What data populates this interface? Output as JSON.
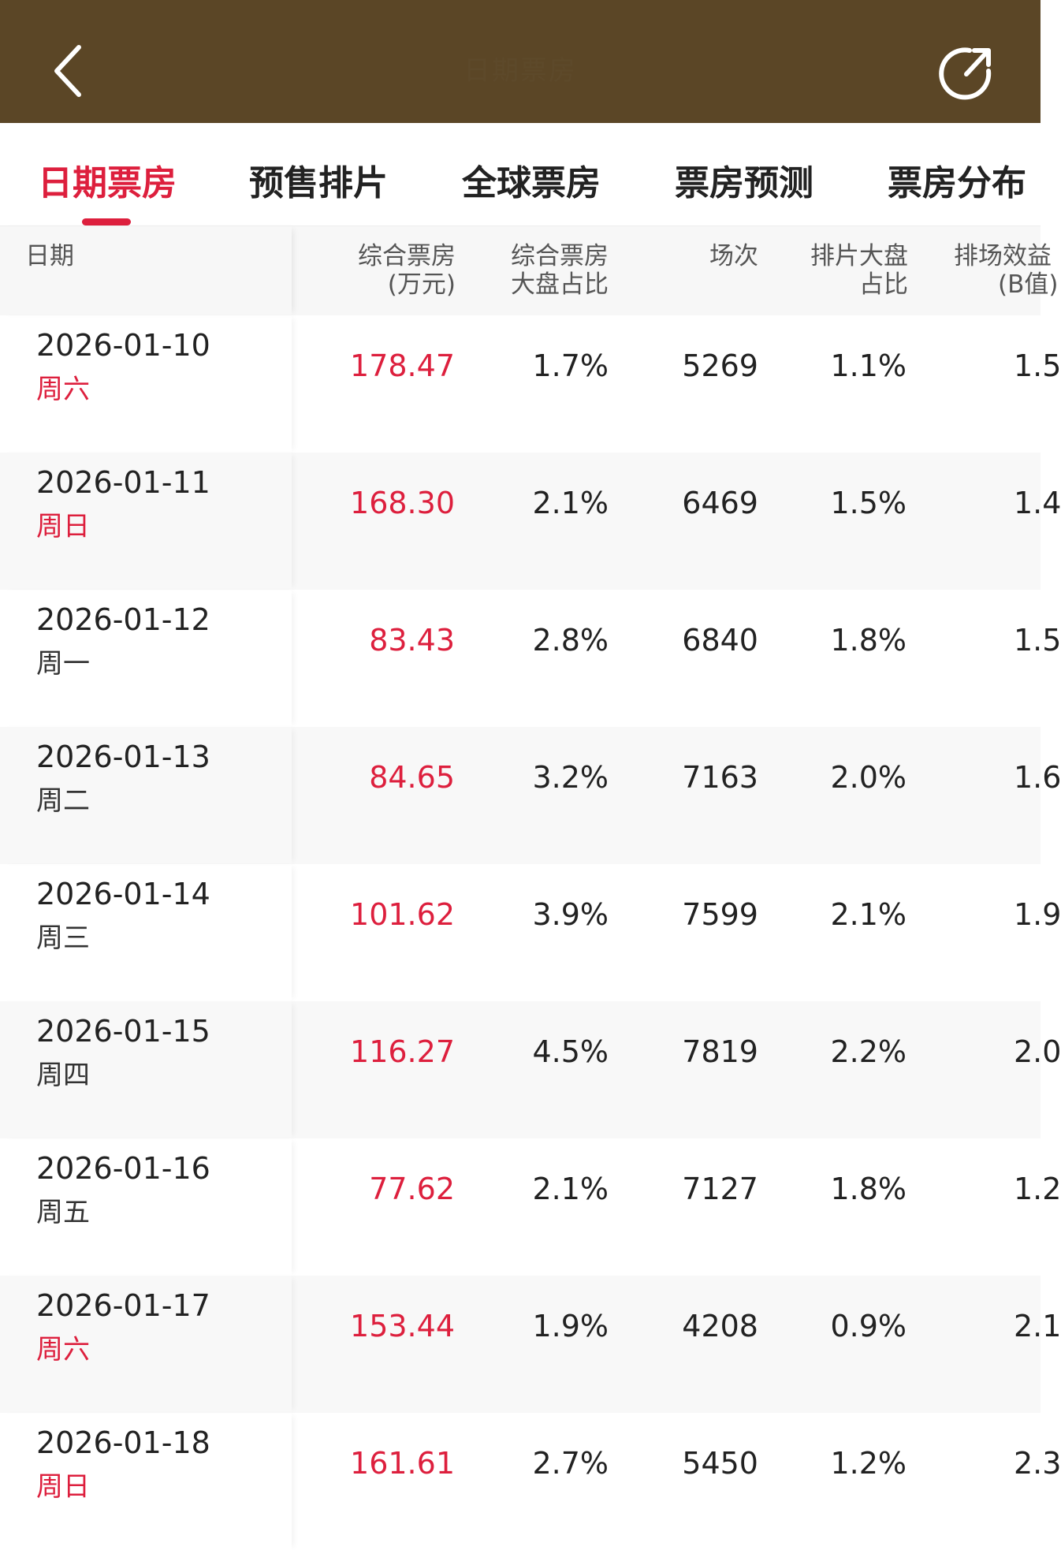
{
  "header": {
    "title": "日期票房",
    "back_icon": "chevron-left-icon",
    "share_icon": "share-icon",
    "bg_color": "#5b4626"
  },
  "tabs": [
    {
      "label": "日期票房",
      "active": true
    },
    {
      "label": "预售排片",
      "active": false
    },
    {
      "label": "全球票房",
      "active": false
    },
    {
      "label": "票房预测",
      "active": false
    },
    {
      "label": "票房分布",
      "active": false
    }
  ],
  "accent_color": "#dd1f3d",
  "table": {
    "columns": {
      "date": "日期",
      "box_office_1": "综合票房",
      "box_office_2": "(万元)",
      "bo_share_1": "综合票房",
      "bo_share_2": "大盘占比",
      "shows": "场次",
      "show_share_1": "排片大盘",
      "show_share_2": "占比",
      "efficiency_1": "排场效益",
      "efficiency_2": "(B值)"
    },
    "rows": [
      {
        "date": "2026-01-10",
        "weekday": "周六",
        "box_office": "178.47",
        "bo_share": "1.7%",
        "shows": "5269",
        "show_share": "1.1%",
        "efficiency": "1.5"
      },
      {
        "date": "2026-01-11",
        "weekday": "周日",
        "box_office": "168.30",
        "bo_share": "2.1%",
        "shows": "6469",
        "show_share": "1.5%",
        "efficiency": "1.4"
      },
      {
        "date": "2026-01-12",
        "weekday": "周一",
        "box_office": "83.43",
        "bo_share": "2.8%",
        "shows": "6840",
        "show_share": "1.8%",
        "efficiency": "1.5"
      },
      {
        "date": "2026-01-13",
        "weekday": "周二",
        "box_office": "84.65",
        "bo_share": "3.2%",
        "shows": "7163",
        "show_share": "2.0%",
        "efficiency": "1.6"
      },
      {
        "date": "2026-01-14",
        "weekday": "周三",
        "box_office": "101.62",
        "bo_share": "3.9%",
        "shows": "7599",
        "show_share": "2.1%",
        "efficiency": "1.9"
      },
      {
        "date": "2026-01-15",
        "weekday": "周四",
        "box_office": "116.27",
        "bo_share": "4.5%",
        "shows": "7819",
        "show_share": "2.2%",
        "efficiency": "2.0"
      },
      {
        "date": "2026-01-16",
        "weekday": "周五",
        "box_office": "77.62",
        "bo_share": "2.1%",
        "shows": "7127",
        "show_share": "1.8%",
        "efficiency": "1.2"
      },
      {
        "date": "2026-01-17",
        "weekday": "周六",
        "box_office": "153.44",
        "bo_share": "1.9%",
        "shows": "4208",
        "show_share": "0.9%",
        "efficiency": "2.1"
      },
      {
        "date": "2026-01-18",
        "weekday": "周日",
        "box_office": "161.61",
        "bo_share": "2.7%",
        "shows": "5450",
        "show_share": "1.2%",
        "efficiency": "2.3"
      }
    ]
  }
}
